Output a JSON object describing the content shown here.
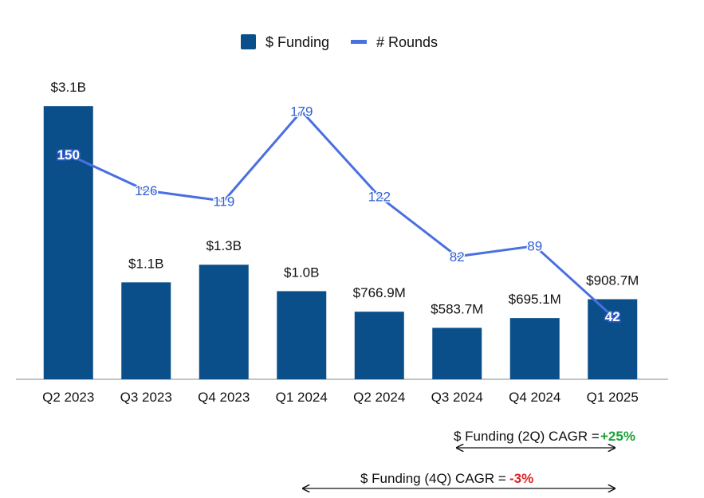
{
  "chart_data": {
    "type": "bar+line",
    "categories": [
      "Q2 2023",
      "Q3 2023",
      "Q4 2023",
      "Q1 2024",
      "Q2 2024",
      "Q3 2024",
      "Q4 2024",
      "Q1 2025"
    ],
    "series": [
      {
        "name": "$ Funding",
        "type": "bar",
        "color": "#0b4f8a",
        "values": [
          3.1,
          1.1,
          1.3,
          1.0,
          0.7669,
          0.5837,
          0.6951,
          0.9087
        ],
        "unit": "$B",
        "labels": [
          "$3.1B",
          "$1.1B",
          "$1.3B",
          "$1.0B",
          "$766.9M",
          "$583.7M",
          "$695.1M",
          "$908.7M"
        ]
      },
      {
        "name": "# Rounds",
        "type": "line",
        "color": "#4a6fe0",
        "values": [
          150,
          126,
          119,
          179,
          122,
          82,
          89,
          42
        ]
      }
    ],
    "y_left_range": [
      0,
      3.4
    ],
    "y_right_range": [
      0,
      200
    ],
    "grid": false,
    "legend_position": "top-center"
  },
  "annotations": {
    "cagr_2q": {
      "label": "$ Funding (2Q) CAGR =",
      "value": "+25%"
    },
    "cagr_4q": {
      "label": "$ Funding (4Q) CAGR =",
      "value": "-3%"
    }
  }
}
